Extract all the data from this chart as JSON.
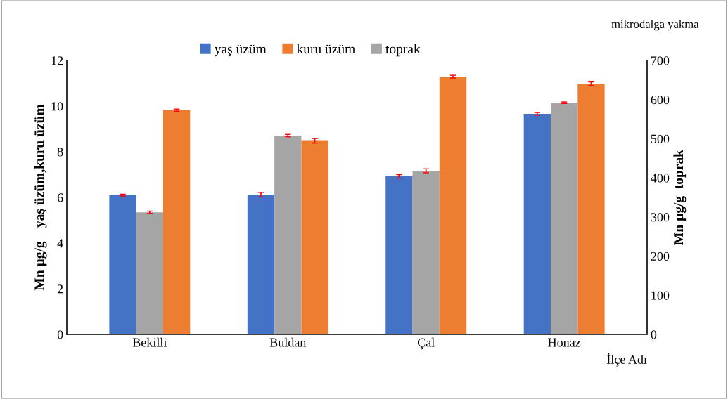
{
  "chart_data": {
    "type": "bar",
    "categories": [
      "Bekilli",
      "Buldan",
      "Çal",
      "Honaz"
    ],
    "series": [
      {
        "name": "yaş üzüm",
        "color": "#4472c4",
        "values": [
          6.1,
          6.12,
          6.92,
          9.66
        ],
        "errors": [
          0.04,
          0.1,
          0.08,
          0.06
        ]
      },
      {
        "name": "kuru üzüm",
        "color": "#ed7d31",
        "values": [
          9.82,
          8.48,
          11.29,
          10.98
        ],
        "errors": [
          0.05,
          0.1,
          0.06,
          0.08
        ]
      },
      {
        "name": "toprak",
        "color": "#a5a5a5",
        "axis": "y2",
        "values": [
          312,
          508,
          418,
          592
        ],
        "errors": [
          3,
          3,
          5,
          2
        ]
      }
    ],
    "xlabel": "İlçe Adı",
    "ylabel": "Mn µg/g    yaş üzüm,kuru üzüm",
    "y2label": "Mn µg/g  toprak",
    "ylim": [
      0,
      12
    ],
    "yticks": [
      0,
      2,
      4,
      6,
      8,
      10,
      12
    ],
    "y2lim": [
      0,
      700
    ],
    "y2ticks": [
      0,
      100,
      200,
      300,
      400,
      500,
      600,
      700
    ],
    "annotations": [
      "mikrodalga yakma"
    ],
    "legend": "top",
    "grid": false
  }
}
